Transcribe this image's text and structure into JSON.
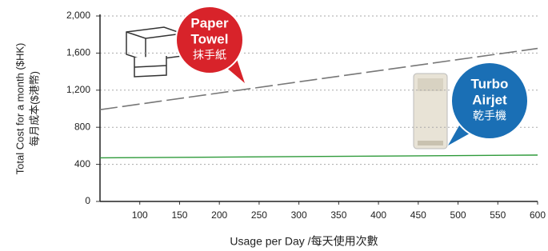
{
  "chart_data": {
    "type": "line",
    "x_label": "Usage per Day /每天使用次數",
    "y_label": [
      "Total Cost for a month ($HK)",
      "每月成本($港幣)"
    ],
    "x": [
      50,
      600
    ],
    "series": [
      {
        "color": "#777777",
        "dashed": true,
        "values": [
          990,
          1650
        ]
      },
      {
        "color": "#2e9a3a",
        "dashed": false,
        "values": [
          470,
          500
        ]
      }
    ],
    "xlim": [
      50,
      600
    ],
    "xticks": [
      100,
      150,
      200,
      250,
      300,
      350,
      400,
      450,
      500,
      550,
      600
    ],
    "ylim": [
      0,
      2000
    ],
    "yticks": [
      0,
      400,
      800,
      {
        "value": 1200,
        "label": "1,200"
      },
      {
        "value": 1600,
        "label": "1,600"
      },
      {
        "value": 2000,
        "label": "2,000"
      }
    ],
    "grid": true,
    "annotations": [
      {
        "lines": [
          "Paper",
          "Towel",
          "抹手紙"
        ],
        "color": "#d8232a"
      },
      {
        "lines": [
          "Turbo",
          "Airjet",
          "乾手機"
        ],
        "color": "#1a6fb5"
      }
    ]
  }
}
